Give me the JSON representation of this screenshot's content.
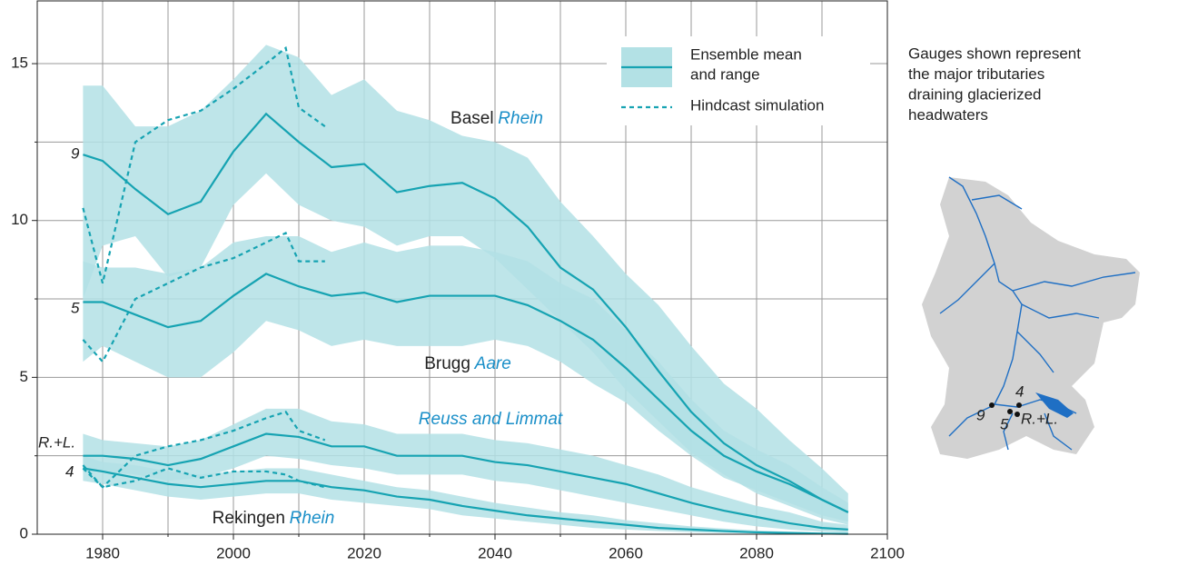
{
  "chart_data": {
    "type": "line",
    "x": [
      1977,
      1980,
      1985,
      1990,
      1995,
      2000,
      2005,
      2010,
      2015,
      2020,
      2025,
      2030,
      2035,
      2040,
      2045,
      2050,
      2055,
      2060,
      2065,
      2070,
      2075,
      2080,
      2085,
      2090,
      2094
    ],
    "hindcast_x": [
      1977,
      1980,
      1985,
      1990,
      1995,
      2000,
      2005,
      2008,
      2010,
      2014
    ],
    "xlim": [
      1970,
      2100
    ],
    "xticks": [
      1980,
      2000,
      2020,
      2040,
      2060,
      2080,
      2100
    ],
    "xminor_ticks": [
      1990,
      2010,
      2030,
      2050,
      2070,
      2090
    ],
    "ylim": [
      0,
      17
    ],
    "yticks": [
      0,
      5,
      10,
      15
    ],
    "yminor_ticks": [
      2.5,
      7.5,
      12.5
    ],
    "grid": true,
    "band_color": "#b3e1e5",
    "line_color": "#16a3b2",
    "river_color": "#1a8fc8",
    "ensembles": [
      {
        "station": "Basel",
        "river": "Rhein",
        "gauge": "9",
        "mean": [
          12.1,
          11.9,
          11.0,
          10.2,
          10.6,
          12.2,
          13.4,
          12.5,
          11.7,
          11.8,
          10.9,
          11.1,
          11.2,
          10.7,
          9.8,
          8.5,
          7.8,
          6.6,
          5.2,
          3.9,
          2.9,
          2.2,
          1.7,
          1.1,
          0.7
        ],
        "upper": [
          14.3,
          14.3,
          13.0,
          13.0,
          13.5,
          14.5,
          15.6,
          15.2,
          14.0,
          14.5,
          13.5,
          13.2,
          12.7,
          12.5,
          12.0,
          10.6,
          9.5,
          8.3,
          7.3,
          6.0,
          4.8,
          4.0,
          3.0,
          2.1,
          1.3
        ],
        "lower": [
          7.5,
          9.2,
          9.5,
          8.2,
          8.5,
          10.5,
          11.5,
          10.5,
          10.0,
          9.8,
          9.2,
          9.5,
          9.5,
          8.8,
          7.8,
          6.8,
          5.8,
          4.6,
          3.6,
          2.6,
          1.9,
          1.3,
          0.9,
          0.5,
          0.3
        ],
        "hindcast": [
          10.4,
          8.0,
          12.5,
          13.2,
          13.5,
          14.2,
          15.0,
          15.5,
          13.6,
          13.0
        ]
      },
      {
        "station": "Brugg",
        "river": "Aare",
        "gauge": "5",
        "mean": [
          7.4,
          7.4,
          7.0,
          6.6,
          6.8,
          7.6,
          8.3,
          7.9,
          7.6,
          7.7,
          7.4,
          7.6,
          7.6,
          7.6,
          7.3,
          6.8,
          6.2,
          5.3,
          4.3,
          3.3,
          2.5,
          2.0,
          1.6,
          1.1,
          0.7
        ],
        "upper": [
          8.7,
          8.5,
          8.5,
          8.3,
          8.5,
          9.3,
          9.5,
          9.5,
          9.0,
          9.3,
          9.0,
          9.2,
          9.2,
          9.0,
          8.7,
          8.0,
          7.5,
          6.5,
          5.5,
          4.3,
          3.3,
          2.7,
          2.2,
          1.5,
          1.0
        ],
        "lower": [
          5.5,
          6.0,
          5.5,
          5.0,
          5.0,
          5.8,
          6.8,
          6.5,
          6.0,
          6.2,
          6.0,
          6.0,
          6.0,
          6.2,
          6.0,
          5.5,
          4.8,
          4.2,
          3.3,
          2.5,
          1.8,
          1.4,
          1.0,
          0.6,
          0.4
        ],
        "hindcast": [
          6.2,
          5.5,
          7.5,
          8.0,
          8.5,
          8.8,
          9.3,
          9.6,
          8.7,
          8.7
        ]
      },
      {
        "river": "Reuss and Limmat",
        "gauge": "R.+L.",
        "mean": [
          2.5,
          2.5,
          2.4,
          2.2,
          2.4,
          2.8,
          3.2,
          3.1,
          2.8,
          2.8,
          2.5,
          2.5,
          2.5,
          2.3,
          2.2,
          2.0,
          1.8,
          1.6,
          1.3,
          1.0,
          0.75,
          0.55,
          0.35,
          0.2,
          0.15
        ],
        "upper": [
          3.2,
          3.0,
          2.9,
          2.8,
          3.0,
          3.5,
          4.0,
          4.0,
          3.6,
          3.5,
          3.2,
          3.2,
          3.2,
          3.0,
          2.9,
          2.7,
          2.5,
          2.2,
          1.9,
          1.5,
          1.2,
          0.9,
          0.7,
          0.4,
          0.3
        ],
        "lower": [
          2.0,
          2.0,
          1.9,
          1.7,
          1.8,
          2.1,
          2.5,
          2.4,
          2.2,
          2.1,
          1.9,
          1.9,
          1.9,
          1.7,
          1.6,
          1.4,
          1.2,
          1.0,
          0.8,
          0.6,
          0.4,
          0.25,
          0.15,
          0.08,
          0.05
        ],
        "hindcast": [
          2.1,
          1.5,
          2.5,
          2.8,
          3.0,
          3.3,
          3.7,
          3.9,
          3.3,
          3.0
        ]
      },
      {
        "station": "Rekingen",
        "river": "Rhein",
        "gauge": "4",
        "mean": [
          2.1,
          2.0,
          1.8,
          1.6,
          1.5,
          1.6,
          1.7,
          1.7,
          1.5,
          1.4,
          1.2,
          1.1,
          0.9,
          0.75,
          0.6,
          0.5,
          0.4,
          0.3,
          0.2,
          0.15,
          0.1,
          0.06,
          0.04,
          0.02,
          0.01
        ],
        "upper": [
          2.5,
          2.3,
          2.2,
          2.0,
          1.9,
          2.0,
          2.1,
          2.1,
          1.9,
          1.7,
          1.5,
          1.4,
          1.2,
          1.0,
          0.85,
          0.7,
          0.6,
          0.45,
          0.35,
          0.25,
          0.18,
          0.12,
          0.08,
          0.05,
          0.03
        ],
        "lower": [
          1.7,
          1.6,
          1.4,
          1.2,
          1.1,
          1.2,
          1.3,
          1.3,
          1.1,
          1.0,
          0.9,
          0.8,
          0.6,
          0.5,
          0.4,
          0.3,
          0.2,
          0.15,
          0.1,
          0.06,
          0.04,
          0.02,
          0.01,
          0.0,
          0.0
        ],
        "hindcast": [
          2.2,
          1.5,
          1.7,
          2.1,
          1.8,
          2.0,
          2.0,
          1.9,
          1.7,
          1.5
        ]
      }
    ],
    "legend": {
      "ensemble": [
        "Ensemble mean",
        "and range"
      ],
      "hindcast": "Hindcast simulation"
    },
    "note": [
      "Gauges shown represent",
      "the major tributaries",
      "draining glacierized",
      "headwaters"
    ],
    "note_color": "#1aa6b7"
  }
}
